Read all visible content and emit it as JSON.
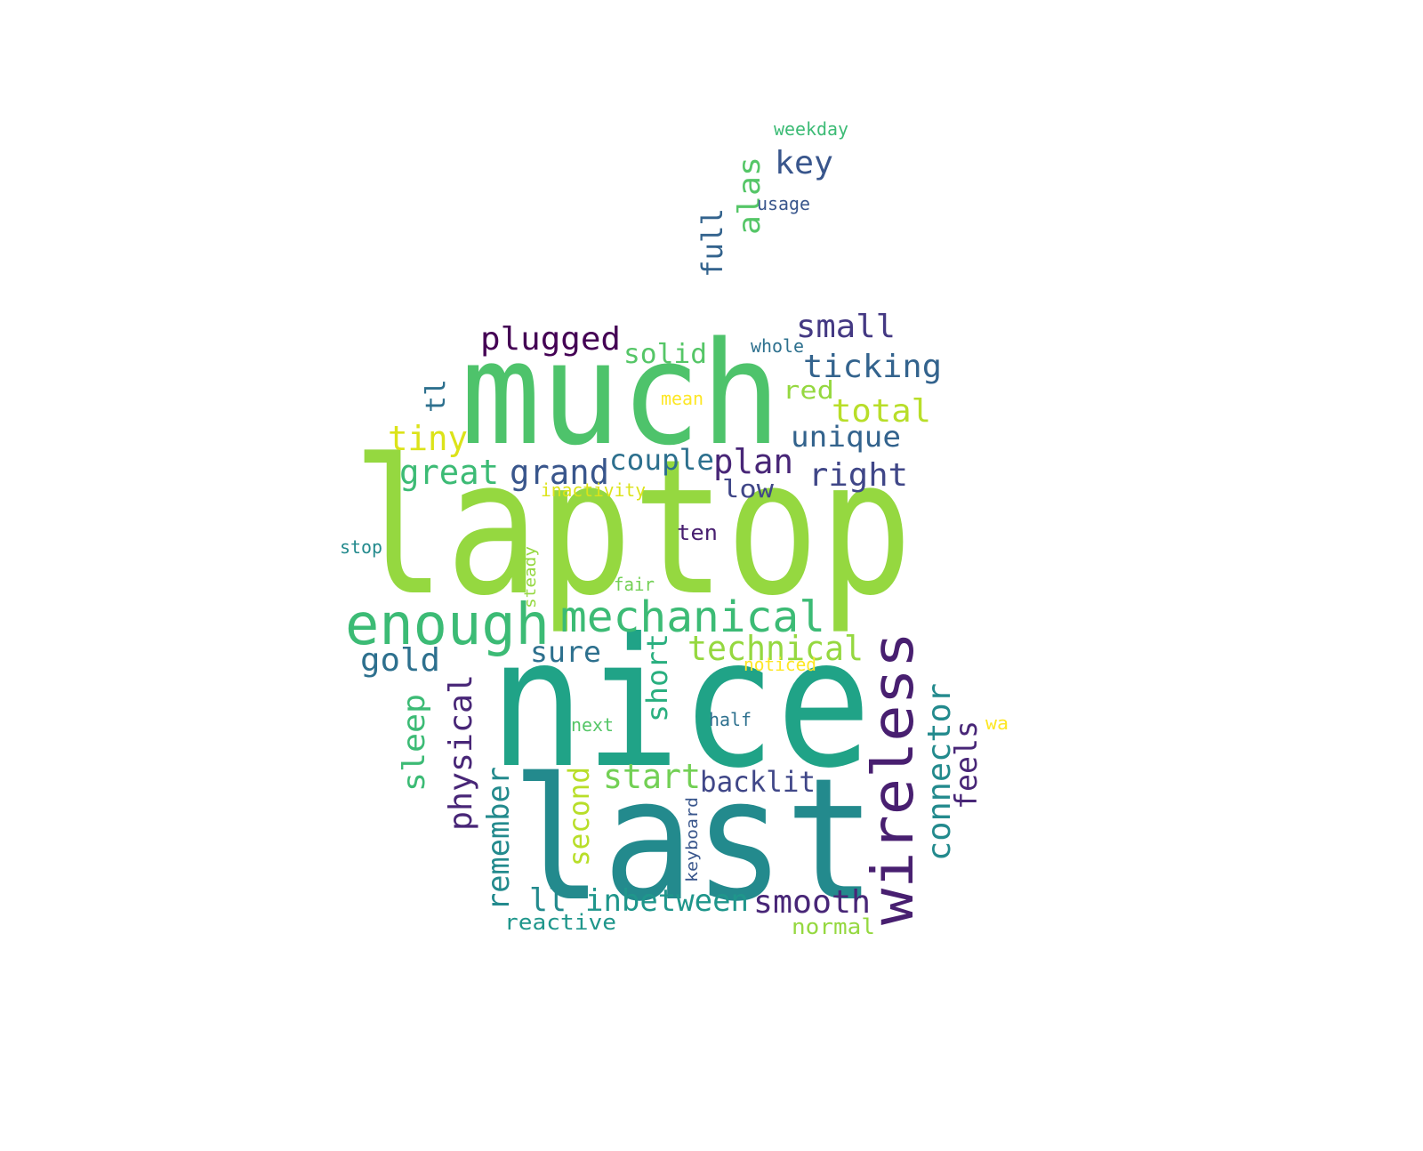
{
  "word_cloud": {
    "words": [
      {
        "text": "laptop",
        "color": "#95d840"
      },
      {
        "text": "nice",
        "color": "#20a387"
      },
      {
        "text": "last",
        "color": "#238a8d"
      },
      {
        "text": "much",
        "color": "#4ec36b"
      },
      {
        "text": "wireless",
        "color": "#481f70"
      },
      {
        "text": "enough",
        "color": "#3cbb75"
      },
      {
        "text": "mechanical",
        "color": "#3cbb75"
      },
      {
        "text": "technical",
        "color": "#95d840"
      },
      {
        "text": "small",
        "color": "#443983"
      },
      {
        "text": "ticking",
        "color": "#33638d"
      },
      {
        "text": "plugged",
        "color": "#440154"
      },
      {
        "text": "total",
        "color": "#b8de29"
      },
      {
        "text": "unique",
        "color": "#33638d"
      },
      {
        "text": "tiny",
        "color": "#dce319"
      },
      {
        "text": "great",
        "color": "#3cbb75"
      },
      {
        "text": "grand",
        "color": "#39568c"
      },
      {
        "text": "couple",
        "color": "#2d708e"
      },
      {
        "text": "plan",
        "color": "#482677"
      },
      {
        "text": "right",
        "color": "#404788"
      },
      {
        "text": "low",
        "color": "#404788"
      },
      {
        "text": "key",
        "color": "#39568c"
      },
      {
        "text": "alas",
        "color": "#55c667"
      },
      {
        "text": "full",
        "color": "#33638d"
      },
      {
        "text": "solid",
        "color": "#55c667"
      },
      {
        "text": "red",
        "color": "#95d840"
      },
      {
        "text": "tl",
        "color": "#2d708e"
      },
      {
        "text": "gold",
        "color": "#2d708e"
      },
      {
        "text": "sure",
        "color": "#2d708e"
      },
      {
        "text": "short",
        "color": "#29af7f"
      },
      {
        "text": "sleep",
        "color": "#3cbb75"
      },
      {
        "text": "physical",
        "color": "#482677"
      },
      {
        "text": "connector",
        "color": "#238a8d"
      },
      {
        "text": "feels",
        "color": "#482677"
      },
      {
        "text": "start",
        "color": "#73d055"
      },
      {
        "text": "backlit",
        "color": "#404788"
      },
      {
        "text": "remember",
        "color": "#238a8d"
      },
      {
        "text": "second",
        "color": "#b8de29"
      },
      {
        "text": "ll",
        "color": "#238a8d"
      },
      {
        "text": "inbetween",
        "color": "#1f968b"
      },
      {
        "text": "smooth",
        "color": "#482677"
      },
      {
        "text": "reactive",
        "color": "#1f968b"
      },
      {
        "text": "normal",
        "color": "#95d840"
      },
      {
        "text": "ten",
        "color": "#481f70"
      },
      {
        "text": "weekday",
        "color": "#3cbb75"
      },
      {
        "text": "usage",
        "color": "#39568c"
      },
      {
        "text": "whole",
        "color": "#2d708e"
      },
      {
        "text": "mean",
        "color": "#fde725"
      },
      {
        "text": "inactivity",
        "color": "#dce319"
      },
      {
        "text": "stop",
        "color": "#238a8d"
      },
      {
        "text": "steady",
        "color": "#95d840"
      },
      {
        "text": "fair",
        "color": "#73d055"
      },
      {
        "text": "noticed",
        "color": "#fde725"
      },
      {
        "text": "next",
        "color": "#55c667"
      },
      {
        "text": "half",
        "color": "#2d708e"
      },
      {
        "text": "wa",
        "color": "#fde725"
      },
      {
        "text": "keyboard",
        "color": "#39568c"
      }
    ]
  }
}
